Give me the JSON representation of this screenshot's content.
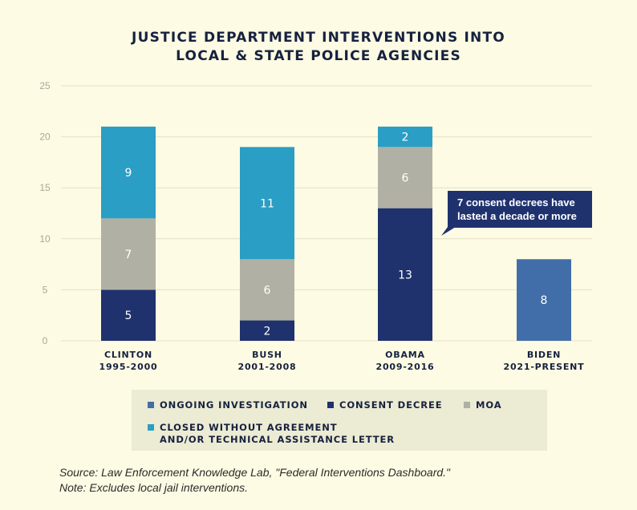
{
  "colors": {
    "background": "#fdfbe3",
    "ongoing": "#416ea8",
    "consent": "#1f326e",
    "moa": "#b1b0a4",
    "closed": "#2a9ec4",
    "annotation_bg": "#1f326e",
    "grid": "#e2e0c6",
    "text_dark": "#16213f",
    "tick_text": "#a8a79a"
  },
  "chart_data": {
    "type": "bar",
    "stacked": true,
    "title": "JUSTICE DEPARTMENT INTERVENTIONS INTO LOCAL & STATE POLICE AGENCIES",
    "title_lines": [
      "JUSTICE DEPARTMENT INTERVENTIONS INTO",
      "LOCAL & STATE POLICE AGENCIES"
    ],
    "ylim": [
      0,
      25
    ],
    "yticks": [
      0,
      5,
      10,
      15,
      20,
      25
    ],
    "grid": true,
    "categories": [
      {
        "name": "CLINTON",
        "years": "1995-2000"
      },
      {
        "name": "BUSH",
        "years": "2001-2008"
      },
      {
        "name": "OBAMA",
        "years": "2009-2016"
      },
      {
        "name": "BIDEN",
        "years": "2021-PRESENT"
      }
    ],
    "series": [
      {
        "key": "ongoing",
        "name": "ONGOING INVESTIGATION",
        "values": [
          0,
          0,
          0,
          8
        ]
      },
      {
        "key": "consent",
        "name": "CONSENT DECREE",
        "values": [
          5,
          2,
          13,
          0
        ]
      },
      {
        "key": "moa",
        "name": "MOA",
        "values": [
          7,
          6,
          6,
          0
        ]
      },
      {
        "key": "closed",
        "name": "CLOSED WITHOUT AGREEMENT AND/OR TECHNICAL ASSISTANCE LETTER",
        "values": [
          9,
          11,
          2,
          0
        ]
      }
    ],
    "legend_position": "bottom",
    "annotation": {
      "lines": [
        "7 consent decrees have",
        "lasted a decade or more"
      ],
      "category_index": 2
    }
  },
  "legend": {
    "items": [
      {
        "key": "ongoing",
        "lines": [
          "ONGOING INVESTIGATION"
        ]
      },
      {
        "key": "consent",
        "lines": [
          "CONSENT DECREE"
        ]
      },
      {
        "key": "moa",
        "lines": [
          "MOA"
        ]
      },
      {
        "key": "closed",
        "lines": [
          "CLOSED WITHOUT AGREEMENT",
          "AND/OR TECHNICAL ASSISTANCE LETTER"
        ]
      }
    ]
  },
  "footnote": {
    "source": "Source: Law Enforcement Knowledge Lab, \"Federal Interventions Dashboard.\"",
    "note": "Note: Excludes local jail interventions."
  }
}
